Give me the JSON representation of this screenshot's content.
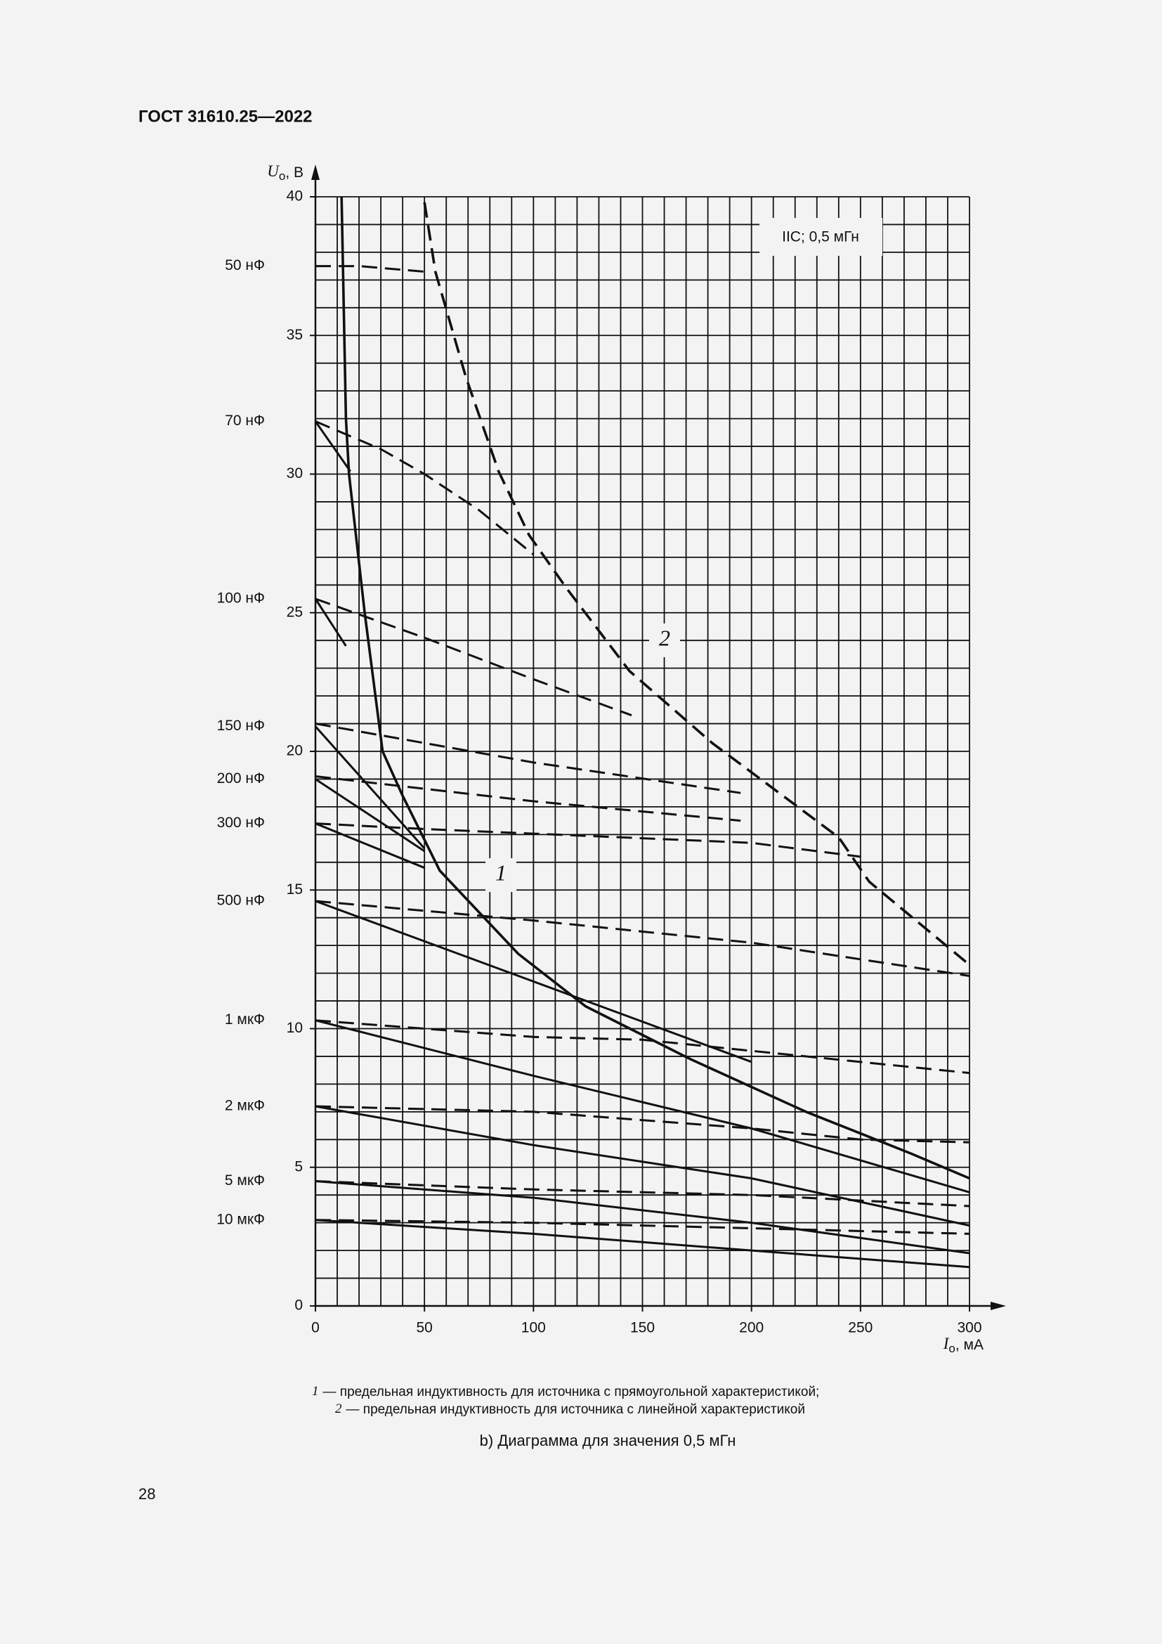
{
  "header": {
    "title": "ГОСТ 31610.25—2022"
  },
  "chart_data": {
    "type": "line",
    "xlim": [
      0,
      300
    ],
    "ylim": [
      0,
      40
    ],
    "xticks": [
      0,
      50,
      100,
      150,
      200,
      250,
      300
    ],
    "yticks": [
      0,
      5,
      10,
      15,
      20,
      25,
      30,
      35,
      40
    ],
    "grid": {
      "x_step": 10,
      "y_step": 1
    },
    "xlabel": {
      "symbol": "I",
      "subscript": "о",
      "unit": ", мА"
    },
    "ylabel": {
      "symbol": "U",
      "subscript": "о",
      "unit": ", В"
    },
    "annotation": "IIC; 0,5 мГн",
    "color": "#111111",
    "curves": [
      {
        "label": "1",
        "style": "solid",
        "x": [
          12,
          14,
          15.4,
          22.6,
          30.8,
          40,
          57,
          93,
          124,
          172,
          225,
          273,
          300
        ],
        "values": [
          40,
          32,
          30,
          25,
          20,
          18.4,
          15.7,
          12.7,
          10.8,
          8.9,
          7.0,
          5.5,
          4.6
        ]
      },
      {
        "label": "2",
        "style": "dashed",
        "x": [
          50,
          55,
          69,
          84,
          98,
          115,
          144,
          182,
          240,
          254,
          300
        ],
        "values": [
          39.8,
          37.3,
          33.5,
          30.1,
          27.8,
          25.9,
          22.9,
          20.3,
          16.9,
          15.3,
          12.3
        ]
      }
    ],
    "groups": [
      {
        "label": "50 нФ",
        "series": [
          {
            "style": "dashed",
            "x": [
              0,
              20,
              50
            ],
            "values": [
              37.5,
              37.5,
              37.3
            ]
          }
        ]
      },
      {
        "label": "70 нФ",
        "series": [
          {
            "style": "solid",
            "x": [
              0,
              16
            ],
            "values": [
              31.9,
              30.1
            ]
          },
          {
            "style": "dashed",
            "x": [
              0,
              30,
              50,
              75,
              100
            ],
            "values": [
              31.9,
              30.9,
              30.0,
              28.7,
              27.1
            ]
          }
        ]
      },
      {
        "label": "100 нФ",
        "series": [
          {
            "style": "solid",
            "x": [
              0,
              14
            ],
            "values": [
              25.5,
              23.8
            ]
          },
          {
            "style": "dashed",
            "x": [
              0,
              50,
              100,
              145
            ],
            "values": [
              25.5,
              24.1,
              22.6,
              21.3
            ]
          }
        ]
      },
      {
        "label": "150 нФ",
        "series": [
          {
            "style": "solid",
            "x": [
              0,
              50
            ],
            "values": [
              20.9,
              16.5
            ]
          },
          {
            "style": "dashed",
            "x": [
              0,
              50,
              100,
              195
            ],
            "values": [
              21.0,
              20.3,
              19.6,
              18.5
            ]
          }
        ]
      },
      {
        "label": "200 нФ",
        "series": [
          {
            "style": "solid",
            "x": [
              0,
              50
            ],
            "values": [
              19.0,
              16.4
            ]
          },
          {
            "style": "dashed",
            "x": [
              0,
              100,
              195
            ],
            "values": [
              19.1,
              18.2,
              17.5
            ]
          }
        ]
      },
      {
        "label": "300 нФ",
        "series": [
          {
            "style": "solid",
            "x": [
              0,
              50
            ],
            "values": [
              17.4,
              15.8
            ]
          },
          {
            "style": "dashed",
            "x": [
              0,
              50,
              140,
              200,
              250
            ],
            "values": [
              17.4,
              17.2,
              16.9,
              16.7,
              16.2
            ]
          }
        ]
      },
      {
        "label": "500 нФ",
        "series": [
          {
            "style": "solid",
            "x": [
              0,
              100,
              200
            ],
            "values": [
              14.6,
              11.7,
              8.8
            ]
          },
          {
            "style": "dashed",
            "x": [
              0,
              100,
              200,
              300
            ],
            "values": [
              14.6,
              13.9,
              13.1,
              11.9
            ]
          }
        ]
      },
      {
        "label": "1 мкФ",
        "series": [
          {
            "style": "solid",
            "x": [
              0,
              100,
              200,
              300
            ],
            "values": [
              10.3,
              8.3,
              6.4,
              4.1
            ]
          },
          {
            "style": "dashed",
            "x": [
              0,
              100,
              150,
              200,
              300
            ],
            "values": [
              10.3,
              9.7,
              9.6,
              9.2,
              8.4
            ]
          }
        ]
      },
      {
        "label": "2 мкФ",
        "series": [
          {
            "style": "solid",
            "x": [
              0,
              100,
              200,
              300
            ],
            "values": [
              7.2,
              5.8,
              4.6,
              2.9
            ]
          },
          {
            "style": "dashed",
            "x": [
              0,
              100,
              200,
              250,
              300
            ],
            "values": [
              7.2,
              7.0,
              6.4,
              6.0,
              5.9
            ]
          }
        ]
      },
      {
        "label": "5 мкФ",
        "series": [
          {
            "style": "solid",
            "x": [
              0,
              100,
              200,
              300
            ],
            "values": [
              4.5,
              3.9,
              3.0,
              1.9
            ]
          },
          {
            "style": "dashed",
            "x": [
              0,
              100,
              200,
              300
            ],
            "values": [
              4.5,
              4.2,
              4.0,
              3.6
            ]
          }
        ]
      },
      {
        "label": "10 мкФ",
        "series": [
          {
            "style": "solid",
            "x": [
              0,
              100,
              200,
              300
            ],
            "values": [
              3.1,
              2.6,
              2.0,
              1.4
            ]
          },
          {
            "style": "dashed",
            "x": [
              0,
              100,
              200,
              300
            ],
            "values": [
              3.1,
              3.0,
              2.8,
              2.6
            ]
          }
        ]
      }
    ]
  },
  "notes": [
    {
      "number": "1",
      "text": "— предельная индуктивность для источника с прямоугольной характеристикой;"
    },
    {
      "number": "2",
      "text": "— предельная индуктивность для источника с линейной характеристикой"
    }
  ],
  "caption": "b) Диаграмма для значения 0,5 мГн",
  "page_number": "28"
}
